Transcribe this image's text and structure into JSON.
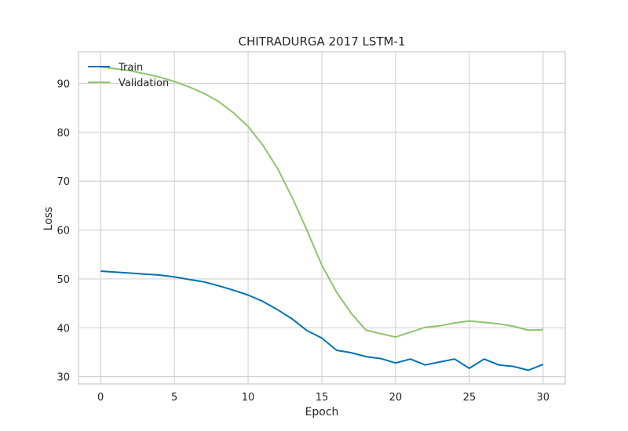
{
  "chart_data": {
    "type": "line",
    "title": "CHITRADURGA 2017 LSTM-1",
    "xlabel": "Epoch",
    "ylabel": "Loss",
    "xlim": [
      -1.5,
      31.5
    ],
    "ylim": [
      28.5,
      96.5
    ],
    "xticks": [
      0,
      5,
      10,
      15,
      20,
      25,
      30
    ],
    "yticks": [
      30,
      40,
      50,
      60,
      70,
      80,
      90
    ],
    "grid": true,
    "legend_position": "top-left",
    "x": [
      0,
      1,
      2,
      3,
      4,
      5,
      6,
      7,
      8,
      9,
      10,
      11,
      12,
      13,
      14,
      15,
      16,
      17,
      18,
      19,
      20,
      21,
      22,
      23,
      24,
      25,
      26,
      27,
      28,
      29,
      30
    ],
    "series": [
      {
        "name": "Train",
        "color": "#0072b2",
        "values": [
          51.6,
          51.4,
          51.2,
          51.0,
          50.8,
          50.4,
          49.9,
          49.4,
          48.6,
          47.7,
          46.7,
          45.4,
          43.7,
          41.8,
          39.4,
          37.9,
          35.4,
          34.9,
          34.1,
          33.7,
          32.8,
          33.6,
          32.4,
          33.0,
          33.6,
          31.7,
          33.6,
          32.4,
          32.1,
          31.3,
          32.5
        ]
      },
      {
        "name": "Validation",
        "color": "#8fc46f",
        "values": [
          93.4,
          93.0,
          92.6,
          92.0,
          91.3,
          90.4,
          89.3,
          88.0,
          86.3,
          84.0,
          81.2,
          77.4,
          72.6,
          66.6,
          59.9,
          52.8,
          47.3,
          42.9,
          39.5,
          38.8,
          38.1,
          39.1,
          40.1,
          40.4,
          41.0,
          41.4,
          41.1,
          40.8,
          40.3,
          39.5,
          39.6
        ]
      }
    ]
  }
}
